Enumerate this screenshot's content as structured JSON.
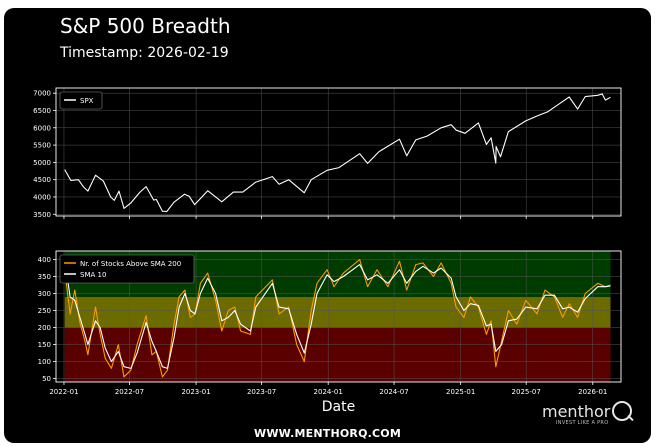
{
  "header": {
    "title": "S&P 500 Breadth",
    "timestamp": "Timestamp: 2026-02-19"
  },
  "footer": {
    "url": "WWW.MENTHORQ.COM",
    "brand": "menthor",
    "tagline": "INVEST LIKE A PRO"
  },
  "chart_data": [
    {
      "type": "line",
      "series": [
        {
          "name": "SPX",
          "color": "#ffffff",
          "points": [
            [
              "2022-01-03",
              4790
            ],
            [
              "2022-01-20",
              4480
            ],
            [
              "2022-02-10",
              4500
            ],
            [
              "2022-02-24",
              4290
            ],
            [
              "2022-03-08",
              4170
            ],
            [
              "2022-03-29",
              4630
            ],
            [
              "2022-04-20",
              4460
            ],
            [
              "2022-05-10",
              4000
            ],
            [
              "2022-05-20",
              3900
            ],
            [
              "2022-06-02",
              4170
            ],
            [
              "2022-06-16",
              3670
            ],
            [
              "2022-07-05",
              3830
            ],
            [
              "2022-07-29",
              4130
            ],
            [
              "2022-08-16",
              4300
            ],
            [
              "2022-09-06",
              3910
            ],
            [
              "2022-09-13",
              3930
            ],
            [
              "2022-09-30",
              3590
            ],
            [
              "2022-10-12",
              3580
            ],
            [
              "2022-11-01",
              3850
            ],
            [
              "2022-11-30",
              4080
            ],
            [
              "2022-12-13",
              4020
            ],
            [
              "2022-12-28",
              3780
            ],
            [
              "2023-01-10",
              3920
            ],
            [
              "2023-02-02",
              4180
            ],
            [
              "2023-03-13",
              3860
            ],
            [
              "2023-04-14",
              4140
            ],
            [
              "2023-05-10",
              4140
            ],
            [
              "2023-06-15",
              4430
            ],
            [
              "2023-07-31",
              4590
            ],
            [
              "2023-08-18",
              4370
            ],
            [
              "2023-09-14",
              4500
            ],
            [
              "2023-10-27",
              4120
            ],
            [
              "2023-11-15",
              4500
            ],
            [
              "2023-12-29",
              4770
            ],
            [
              "2024-01-31",
              4850
            ],
            [
              "2024-03-28",
              5250
            ],
            [
              "2024-04-19",
              4970
            ],
            [
              "2024-05-20",
              5310
            ],
            [
              "2024-07-16",
              5670
            ],
            [
              "2024-08-05",
              5190
            ],
            [
              "2024-08-30",
              5650
            ],
            [
              "2024-09-30",
              5760
            ],
            [
              "2024-11-08",
              6000
            ],
            [
              "2024-12-06",
              6090
            ],
            [
              "2024-12-20",
              5930
            ],
            [
              "2025-01-13",
              5840
            ],
            [
              "2025-02-19",
              6140
            ],
            [
              "2025-03-13",
              5520
            ],
            [
              "2025-03-26",
              5710
            ],
            [
              "2025-04-08",
              4980
            ],
            [
              "2025-04-09",
              5460
            ],
            [
              "2025-04-21",
              5160
            ],
            [
              "2025-05-13",
              5890
            ],
            [
              "2025-06-30",
              6200
            ],
            [
              "2025-07-31",
              6340
            ],
            [
              "2025-08-29",
              6460
            ],
            [
              "2025-09-30",
              6690
            ],
            [
              "2025-10-28",
              6890
            ],
            [
              "2025-11-20",
              6540
            ],
            [
              "2025-12-11",
              6900
            ],
            [
              "2026-01-15",
              6940
            ],
            [
              "2026-01-27",
              6980
            ],
            [
              "2026-02-05",
              6800
            ],
            [
              "2026-02-19",
              6880
            ]
          ]
        }
      ],
      "x_range": [
        "2021-12-10",
        "2026-03-20"
      ],
      "ylim": [
        3450,
        7150
      ],
      "yticks": [
        3500,
        4000,
        4500,
        5000,
        5500,
        6000,
        6500,
        7000
      ],
      "xticks": [],
      "grid": true,
      "legend": "top-left"
    },
    {
      "type": "line",
      "xlabel": "Date",
      "bands": [
        {
          "from": 0,
          "to": 200,
          "color": "#5a0000"
        },
        {
          "from": 200,
          "to": 290,
          "color": "#6b6b00"
        },
        {
          "from": 290,
          "to": 425,
          "color": "#003c00"
        }
      ],
      "series": [
        {
          "name": "Nr. of Stocks Above SMA 200",
          "color": "#ff9900",
          "points": [
            [
              "2022-01-03",
              370
            ],
            [
              "2022-01-18",
              240
            ],
            [
              "2022-01-31",
              310
            ],
            [
              "2022-02-14",
              215
            ],
            [
              "2022-02-28",
              160
            ],
            [
              "2022-03-08",
              120
            ],
            [
              "2022-03-29",
              260
            ],
            [
              "2022-04-11",
              180
            ],
            [
              "2022-04-25",
              110
            ],
            [
              "2022-05-12",
              80
            ],
            [
              "2022-05-31",
              150
            ],
            [
              "2022-06-16",
              55
            ],
            [
              "2022-07-05",
              75
            ],
            [
              "2022-07-22",
              150
            ],
            [
              "2022-08-16",
              235
            ],
            [
              "2022-09-01",
              120
            ],
            [
              "2022-09-13",
              130
            ],
            [
              "2022-09-30",
              55
            ],
            [
              "2022-10-14",
              75
            ],
            [
              "2022-11-01",
              210
            ],
            [
              "2022-11-15",
              290
            ],
            [
              "2022-12-01",
              310
            ],
            [
              "2022-12-16",
              230
            ],
            [
              "2022-12-29",
              240
            ],
            [
              "2023-01-13",
              330
            ],
            [
              "2023-02-02",
              360
            ],
            [
              "2023-02-24",
              280
            ],
            [
              "2023-03-13",
              190
            ],
            [
              "2023-03-31",
              250
            ],
            [
              "2023-04-18",
              260
            ],
            [
              "2023-05-04",
              190
            ],
            [
              "2023-05-31",
              180
            ],
            [
              "2023-06-15",
              290
            ],
            [
              "2023-07-31",
              340
            ],
            [
              "2023-08-18",
              240
            ],
            [
              "2023-09-14",
              260
            ],
            [
              "2023-10-06",
              150
            ],
            [
              "2023-10-27",
              100
            ],
            [
              "2023-11-15",
              250
            ],
            [
              "2023-12-01",
              330
            ],
            [
              "2023-12-29",
              370
            ],
            [
              "2024-01-17",
              320
            ],
            [
              "2024-02-12",
              360
            ],
            [
              "2024-03-28",
              400
            ],
            [
              "2024-04-19",
              320
            ],
            [
              "2024-05-15",
              370
            ],
            [
              "2024-06-14",
              320
            ],
            [
              "2024-07-16",
              395
            ],
            [
              "2024-08-05",
              310
            ],
            [
              "2024-08-30",
              385
            ],
            [
              "2024-09-19",
              390
            ],
            [
              "2024-10-18",
              350
            ],
            [
              "2024-11-08",
              390
            ],
            [
              "2024-12-06",
              330
            ],
            [
              "2024-12-19",
              260
            ],
            [
              "2025-01-10",
              230
            ],
            [
              "2025-01-28",
              290
            ],
            [
              "2025-02-19",
              260
            ],
            [
              "2025-03-13",
              180
            ],
            [
              "2025-03-26",
              220
            ],
            [
              "2025-04-08",
              85
            ],
            [
              "2025-04-24",
              160
            ],
            [
              "2025-05-13",
              250
            ],
            [
              "2025-06-05",
              210
            ],
            [
              "2025-06-30",
              280
            ],
            [
              "2025-07-31",
              240
            ],
            [
              "2025-08-22",
              310
            ],
            [
              "2025-09-17",
              290
            ],
            [
              "2025-10-10",
              230
            ],
            [
              "2025-10-28",
              270
            ],
            [
              "2025-11-20",
              230
            ],
            [
              "2025-12-11",
              300
            ],
            [
              "2026-01-15",
              330
            ],
            [
              "2026-02-05",
              320
            ],
            [
              "2026-02-19",
              325
            ]
          ]
        },
        {
          "name": "SMA 10",
          "color": "#ffffff",
          "points": [
            [
              "2022-01-03",
              400
            ],
            [
              "2022-01-18",
              290
            ],
            [
              "2022-01-31",
              280
            ],
            [
              "2022-02-14",
              230
            ],
            [
              "2022-02-28",
              180
            ],
            [
              "2022-03-08",
              150
            ],
            [
              "2022-03-29",
              220
            ],
            [
              "2022-04-11",
              200
            ],
            [
              "2022-04-25",
              140
            ],
            [
              "2022-05-12",
              100
            ],
            [
              "2022-05-31",
              130
            ],
            [
              "2022-06-16",
              85
            ],
            [
              "2022-07-05",
              80
            ],
            [
              "2022-07-22",
              125
            ],
            [
              "2022-08-16",
              215
            ],
            [
              "2022-09-01",
              160
            ],
            [
              "2022-09-13",
              130
            ],
            [
              "2022-09-30",
              85
            ],
            [
              "2022-10-14",
              80
            ],
            [
              "2022-11-01",
              170
            ],
            [
              "2022-11-15",
              260
            ],
            [
              "2022-12-01",
              300
            ],
            [
              "2022-12-16",
              250
            ],
            [
              "2022-12-29",
              240
            ],
            [
              "2023-01-13",
              300
            ],
            [
              "2023-02-02",
              345
            ],
            [
              "2023-02-24",
              300
            ],
            [
              "2023-03-13",
              220
            ],
            [
              "2023-03-31",
              230
            ],
            [
              "2023-04-18",
              250
            ],
            [
              "2023-05-04",
              210
            ],
            [
              "2023-05-31",
              190
            ],
            [
              "2023-06-15",
              260
            ],
            [
              "2023-07-31",
              330
            ],
            [
              "2023-08-18",
              260
            ],
            [
              "2023-09-14",
              255
            ],
            [
              "2023-10-06",
              180
            ],
            [
              "2023-10-27",
              125
            ],
            [
              "2023-11-15",
              210
            ],
            [
              "2023-12-01",
              300
            ],
            [
              "2023-12-29",
              355
            ],
            [
              "2024-01-17",
              335
            ],
            [
              "2024-02-12",
              350
            ],
            [
              "2024-03-28",
              385
            ],
            [
              "2024-04-19",
              340
            ],
            [
              "2024-05-15",
              355
            ],
            [
              "2024-06-14",
              330
            ],
            [
              "2024-07-16",
              370
            ],
            [
              "2024-08-05",
              330
            ],
            [
              "2024-08-30",
              365
            ],
            [
              "2024-09-19",
              380
            ],
            [
              "2024-10-18",
              360
            ],
            [
              "2024-11-08",
              375
            ],
            [
              "2024-12-06",
              345
            ],
            [
              "2024-12-19",
              290
            ],
            [
              "2025-01-10",
              250
            ],
            [
              "2025-01-28",
              270
            ],
            [
              "2025-02-19",
              265
            ],
            [
              "2025-03-13",
              205
            ],
            [
              "2025-03-26",
              210
            ],
            [
              "2025-04-08",
              130
            ],
            [
              "2025-04-24",
              150
            ],
            [
              "2025-05-13",
              220
            ],
            [
              "2025-06-05",
              225
            ],
            [
              "2025-06-30",
              260
            ],
            [
              "2025-07-31",
              255
            ],
            [
              "2025-08-22",
              295
            ],
            [
              "2025-09-17",
              295
            ],
            [
              "2025-10-10",
              255
            ],
            [
              "2025-10-28",
              260
            ],
            [
              "2025-11-20",
              245
            ],
            [
              "2025-12-11",
              285
            ],
            [
              "2026-01-15",
              320
            ],
            [
              "2026-02-05",
              320
            ],
            [
              "2026-02-19",
              322
            ]
          ]
        }
      ],
      "x_range": [
        "2021-12-10",
        "2026-03-20"
      ],
      "ylim": [
        40,
        425
      ],
      "yticks": [
        50,
        100,
        150,
        200,
        250,
        300,
        350,
        400
      ],
      "xticks": [
        "2022-01",
        "2022-07",
        "2023-01",
        "2023-07",
        "2024-01",
        "2024-07",
        "2025-01",
        "2025-07",
        "2026-01"
      ],
      "grid": true,
      "legend": "top-left"
    }
  ]
}
